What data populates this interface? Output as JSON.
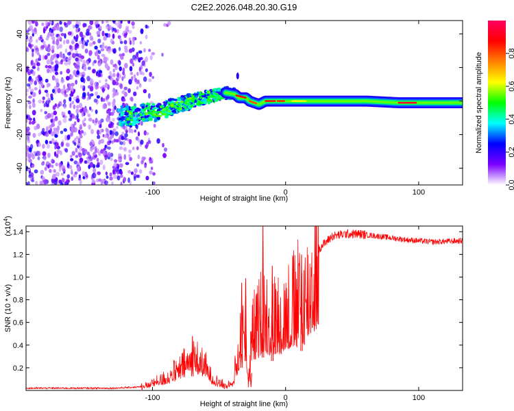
{
  "title": "C2E2.2026.048.20.30.G19",
  "chart_data": [
    {
      "type": "heatmap",
      "name": "spectrogram",
      "xlabel": "Height of straight line (km)",
      "ylabel": "Frequency (Hz)",
      "xlim": [
        -195,
        133
      ],
      "ylim": [
        -50,
        48
      ],
      "xticks": [
        -100,
        0,
        100
      ],
      "yticks": [
        -40,
        -20,
        0,
        20,
        40
      ],
      "colorbar": {
        "label": "Normalized spectral amplitude",
        "ticks": [
          0.0,
          0.2,
          0.4,
          0.6,
          0.8
        ],
        "range": [
          0,
          1
        ],
        "stops": [
          "#ffffff",
          "#7b00ff",
          "#0000ff",
          "#00ffff",
          "#00ff00",
          "#ffff00",
          "#ff8000",
          "#ff0000",
          "#ff0060"
        ]
      },
      "noise_region_x": [
        -195,
        -105
      ],
      "signal_track": [
        {
          "x": -125,
          "f": -9
        },
        {
          "x": -115,
          "f": -9
        },
        {
          "x": -105,
          "f": -7
        },
        {
          "x": -95,
          "f": -7
        },
        {
          "x": -85,
          "f": -3
        },
        {
          "x": -75,
          "f": -1
        },
        {
          "x": -65,
          "f": 1
        },
        {
          "x": -55,
          "f": 3
        },
        {
          "x": -45,
          "f": 5
        },
        {
          "x": -38,
          "f": 4
        },
        {
          "x": -35,
          "f": 2
        },
        {
          "x": -30,
          "f": 2
        },
        {
          "x": -27,
          "f": 0
        },
        {
          "x": -20,
          "f": -2
        },
        {
          "x": -15,
          "f": 0
        },
        {
          "x": 0,
          "f": 0
        },
        {
          "x": 20,
          "f": 0
        },
        {
          "x": 60,
          "f": 0
        },
        {
          "x": 85,
          "f": -1
        },
        {
          "x": 100,
          "f": -1
        },
        {
          "x": 133,
          "f": -1
        }
      ]
    },
    {
      "type": "line",
      "name": "snr",
      "xlabel": "Height of straight line (km)",
      "ylabel": "SNR (10 * v/v)",
      "y_multiplier": "(x10",
      "y_multiplier_exp": "4",
      "y_multiplier_close": ")",
      "xlim": [
        -195,
        133
      ],
      "ylim": [
        0,
        1.45
      ],
      "xticks": [
        -100,
        0,
        100
      ],
      "yticks": [
        0.2,
        0.4,
        0.6,
        0.8,
        1.0,
        1.2,
        1.4
      ],
      "line_color": "#ff0000",
      "envelope": [
        {
          "x": -195,
          "y": 0.02
        },
        {
          "x": -130,
          "y": 0.02
        },
        {
          "x": -110,
          "y": 0.03
        },
        {
          "x": -100,
          "y": 0.07
        },
        {
          "x": -90,
          "y": 0.12
        },
        {
          "x": -80,
          "y": 0.2
        },
        {
          "x": -72,
          "y": 0.3
        },
        {
          "x": -68,
          "y": 0.32
        },
        {
          "x": -60,
          "y": 0.22
        },
        {
          "x": -55,
          "y": 0.12
        },
        {
          "x": -45,
          "y": 0.04
        },
        {
          "x": -40,
          "y": 0.08
        },
        {
          "x": -33,
          "y": 0.5
        },
        {
          "x": -30,
          "y": 0.65
        },
        {
          "x": -28,
          "y": 0.05
        },
        {
          "x": -25,
          "y": 0.55
        },
        {
          "x": -20,
          "y": 0.65
        },
        {
          "x": -16,
          "y": 0.75
        },
        {
          "x": -10,
          "y": 0.65
        },
        {
          "x": -5,
          "y": 0.7
        },
        {
          "x": 5,
          "y": 0.8
        },
        {
          "x": 15,
          "y": 0.9
        },
        {
          "x": 20,
          "y": 1.1
        },
        {
          "x": 25,
          "y": 1.25
        },
        {
          "x": 35,
          "y": 1.36
        },
        {
          "x": 45,
          "y": 1.38
        },
        {
          "x": 55,
          "y": 1.38
        },
        {
          "x": 70,
          "y": 1.36
        },
        {
          "x": 90,
          "y": 1.33
        },
        {
          "x": 110,
          "y": 1.31
        },
        {
          "x": 133,
          "y": 1.32
        }
      ],
      "spikes": [
        {
          "x": -17,
          "y": 1.47
        },
        {
          "x": -30,
          "y": 0.99
        },
        {
          "x": -33,
          "y": 0.95
        },
        {
          "x": -70,
          "y": 0.48
        },
        {
          "x": -10,
          "y": 1.1
        },
        {
          "x": 12,
          "y": 1.2
        },
        {
          "x": -26,
          "y": 0.03
        }
      ]
    }
  ]
}
